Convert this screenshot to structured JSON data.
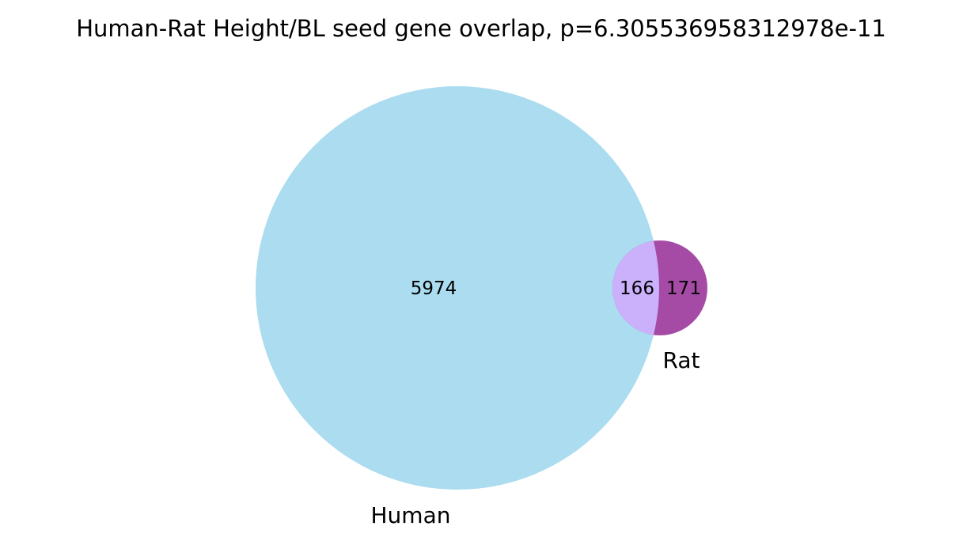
{
  "title": "Human-Rat Height/BL seed gene overlap, p=6.305536958312978e-11",
  "chart_data": {
    "type": "venn",
    "title": "Human-Rat Height/BL seed gene overlap, p=6.305536958312978e-11",
    "sets": [
      {
        "name": "Human",
        "only_count": "5974",
        "color": "#abdcef"
      },
      {
        "name": "Rat",
        "only_count": "171",
        "color": "#a54ba5"
      }
    ],
    "overlap": {
      "count": "166",
      "color": "#cbb1fc"
    }
  }
}
